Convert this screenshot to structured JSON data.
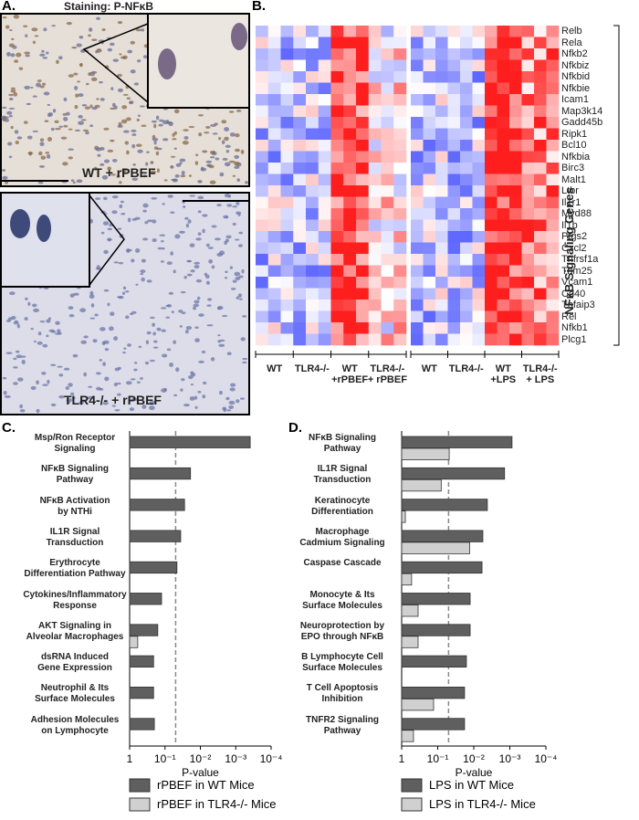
{
  "panels": {
    "a": "A.",
    "b": "B.",
    "c": "C.",
    "d": "D."
  },
  "staining": "Staining: P-NFκB",
  "image_labels": [
    "WT + rPBEF",
    "TLR4-/- + rPBEF"
  ],
  "heatmap": {
    "group_label": "NFκB Signaling Genes",
    "genes": [
      "Relb",
      "Rela",
      "Nfkb2",
      "Nfkbiz",
      "Nfkbid",
      "Nfkbie",
      "Icam1",
      "Map3k14",
      "Gadd45b",
      "Ripk1",
      "Bcl10",
      "Nfkbia",
      "Birc3",
      "Malt1",
      "Ltbr",
      "Il1r1",
      "Myd88",
      "Il1b",
      "Ptgs2",
      "Cxcl2",
      "Tnfrsf1a",
      "Trim25",
      "Vcam1",
      "Cd40",
      "Tnfaip3",
      "Rel",
      "Nfkb1",
      "Plcg1"
    ],
    "left_groups": [
      "WT",
      "TLR4-/-",
      "WT\n+rPBEF",
      "TLR4-/-\n+ rPBEF"
    ],
    "right_groups": [
      "WT",
      "TLR4-/-",
      "WT\n+LPS",
      "TLR4-/-\n+ LPS"
    ]
  },
  "chart_data": [
    {
      "type": "bar",
      "orientation": "horizontal",
      "xlabel": "P-value",
      "log": true,
      "xlim": [
        1,
        0.0001
      ],
      "xticks": [
        1,
        {
          "value": 0.1,
          "label": "10⁻¹"
        },
        {
          "value": 0.01,
          "label": "10⁻²"
        },
        {
          "value": 0.001,
          "label": "10⁻³"
        },
        {
          "value": 0.0001,
          "label": "10⁻⁴"
        }
      ],
      "threshold": 0.05,
      "categories": [
        "Msp/Ron Receptor\nSignaling",
        "NFκB Signaling\nPathway",
        "NFκB Activation\nby NTHi",
        "IL1R Signal\nTransduction",
        "Erythrocyte\nDifferentiation Pathway",
        "Cytokines/Inflammatory\nResponse",
        "AKT Signaling in\nAlveolar Macrophages",
        "dsRNA Induced\nGene Expression",
        "Neutrophil & Its\nSurface Molecules",
        "Adhesion Molecules\non Lymphocyte"
      ],
      "series": [
        {
          "name": "rPBEF in WT Mice",
          "color": "#5f5f5f",
          "values": [
            0.00039,
            0.019,
            0.028,
            0.036,
            0.046,
            0.125,
            0.16,
            0.21,
            0.21,
            0.2
          ]
        },
        {
          "name": "rPBEF in TLR4-/- Mice",
          "color": "#d0d0d0",
          "values": [
            null,
            null,
            null,
            null,
            null,
            null,
            0.59,
            null,
            null,
            null
          ]
        }
      ]
    },
    {
      "type": "bar",
      "orientation": "horizontal",
      "xlabel": "P-value",
      "log": true,
      "xlim": [
        1,
        0.0001
      ],
      "xticks": [
        1,
        {
          "value": 0.1,
          "label": "10⁻¹"
        },
        {
          "value": 0.01,
          "label": "10⁻²"
        },
        {
          "value": 0.001,
          "label": "10⁻³"
        },
        {
          "value": 0.0001,
          "label": "10⁻⁴"
        }
      ],
      "threshold": 0.05,
      "categories": [
        "NFκB Signaling\nPathway",
        "IL1R Signal\nTransduction",
        "Keratinocyte\nDifferentiation",
        "Macrophage\nCadmium Signaling",
        "Caspase Cascade",
        "Monocyte & Its\nSurface Molecules",
        "Neuroprotection by\nEPO through NFκB",
        "B Lymphocyte Cell\nSurface Molecules",
        "T Cell Apoptosis\nInhibition",
        "TNFR2 Signaling\nPathway"
      ],
      "series": [
        {
          "name": "LPS in WT Mice",
          "color": "#5f5f5f",
          "values": [
            0.00087,
            0.0014,
            0.0042,
            0.0056,
            0.0059,
            0.0126,
            0.0126,
            0.016,
            0.018,
            0.018
          ]
        },
        {
          "name": "LPS in TLR4-/- Mice",
          "color": "#d0d0d0",
          "values": [
            0.048,
            0.08,
            0.79,
            0.013,
            0.53,
            0.35,
            0.35,
            null,
            0.13,
            0.47
          ]
        }
      ]
    }
  ]
}
